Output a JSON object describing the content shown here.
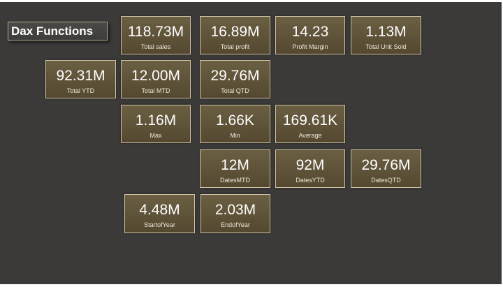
{
  "page": {
    "title": "Dax Functions"
  },
  "cards": {
    "total_sales": {
      "value": "118.73M",
      "label": "Total sales"
    },
    "total_profit": {
      "value": "16.89M",
      "label": "Total profit"
    },
    "profit_margin": {
      "value": "14.23",
      "label": "Profit Margin"
    },
    "total_unit_sold": {
      "value": "1.13M",
      "label": "Total Unit Sold"
    },
    "total_ytd": {
      "value": "92.31M",
      "label": "Total YTD"
    },
    "total_mtd": {
      "value": "12.00M",
      "label": "Total MTD"
    },
    "total_qtd": {
      "value": "29.76M",
      "label": "Total QTD"
    },
    "max": {
      "value": "1.16M",
      "label": "Max"
    },
    "min": {
      "value": "1.66K",
      "label": "Min"
    },
    "average": {
      "value": "169.61K",
      "label": "Average"
    },
    "dates_mtd": {
      "value": "12M",
      "label": "DatesMTD"
    },
    "dates_ytd": {
      "value": "92M",
      "label": "DatesYTD"
    },
    "dates_qtd": {
      "value": "29.76M",
      "label": "DatesQTD"
    },
    "start_of_year": {
      "value": "4.48M",
      "label": "StartofYear"
    },
    "end_of_year": {
      "value": "2.03M",
      "label": "EndofYear"
    }
  },
  "colors": {
    "background": "#3b3a39",
    "card_fill": "#5e5238",
    "card_border": "#cfc4a4",
    "text": "#ffffff"
  }
}
